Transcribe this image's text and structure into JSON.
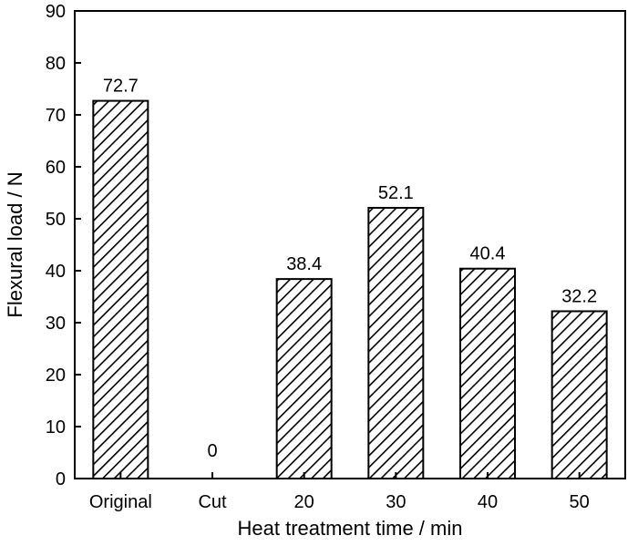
{
  "chart_data": {
    "type": "bar",
    "title": "",
    "xlabel": "Heat treatment time / min",
    "ylabel": "Flexural load / N",
    "categories": [
      "Original",
      "Cut",
      "20",
      "30",
      "40",
      "50"
    ],
    "values": [
      72.7,
      0,
      38.4,
      52.1,
      40.4,
      32.2
    ],
    "data_labels": [
      "72.7",
      "0",
      "38.4",
      "52.1",
      "40.4",
      "32.2"
    ],
    "ylim": [
      0,
      90
    ],
    "yticks": [
      0,
      10,
      20,
      30,
      40,
      50,
      60,
      70,
      80,
      90
    ],
    "grid": false,
    "legend": "none",
    "bar_fill": "diagonal-hatch",
    "colors": {
      "bar_stroke": "#000000",
      "hatch": "#000000",
      "background": "#ffffff"
    }
  }
}
